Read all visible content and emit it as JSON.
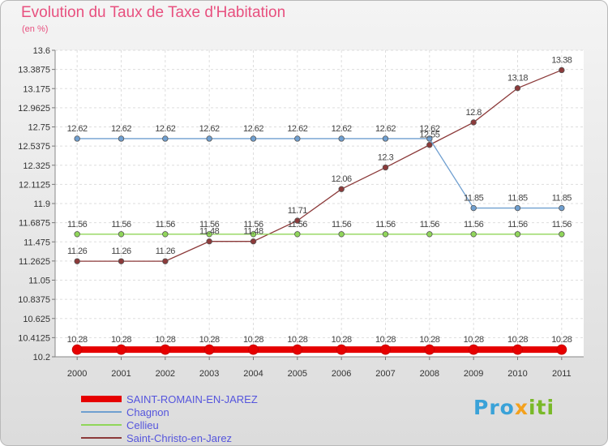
{
  "chart_data": {
    "type": "line",
    "title": "Evolution du Taux de Taxe d'Habitation",
    "subtitle": "(en %)",
    "x": [
      "2000",
      "2001",
      "2002",
      "2003",
      "2004",
      "2005",
      "2006",
      "2007",
      "2008",
      "2009",
      "2010",
      "2011"
    ],
    "yticks": [
      "10.2",
      "10.4125",
      "10.625",
      "10.8375",
      "11.05",
      "11.2625",
      "11.475",
      "11.6875",
      "11.9",
      "12.1125",
      "12.325",
      "12.5375",
      "12.75",
      "12.9625",
      "13.175",
      "13.3875",
      "13.6"
    ],
    "ylim": [
      10.2,
      13.6
    ],
    "grid": true,
    "legend_position": "bottom-left",
    "series": [
      {
        "name": "SAINT-ROMAIN-EN-JAREZ",
        "color": "#e60000",
        "values": [
          10.28,
          10.28,
          10.28,
          10.28,
          10.28,
          10.28,
          10.28,
          10.28,
          10.28,
          10.28,
          10.28,
          10.28
        ],
        "labels": [
          "10.28",
          "10.28",
          "10.28",
          "10.28",
          "10.28",
          "10.28",
          "10.28",
          "10.28",
          "10.28",
          "10.28",
          "10.28",
          "10.28"
        ]
      },
      {
        "name": "Chagnon",
        "color": "#6f9fd0",
        "values": [
          12.62,
          12.62,
          12.62,
          12.62,
          12.62,
          12.62,
          12.62,
          12.62,
          12.62,
          11.85,
          11.85,
          11.85
        ],
        "labels": [
          "12.62",
          "12.62",
          "12.62",
          "12.62",
          "12.62",
          "12.62",
          "12.62",
          "12.62",
          "12.62",
          "11.85",
          "11.85",
          "11.85"
        ]
      },
      {
        "name": "Cellieu",
        "color": "#90d65a",
        "values": [
          11.56,
          11.56,
          11.56,
          11.56,
          11.56,
          11.56,
          11.56,
          11.56,
          11.56,
          11.56,
          11.56,
          11.56
        ],
        "labels": [
          "11.56",
          "11.56",
          "11.56",
          "11.56",
          "11.56",
          "11.56",
          "11.56",
          "11.56",
          "11.56",
          "11.56",
          "11.56",
          "11.56"
        ]
      },
      {
        "name": "Saint-Christo-en-Jarez",
        "color": "#8c3a3a",
        "values": [
          11.26,
          11.26,
          11.26,
          11.48,
          11.48,
          11.71,
          12.06,
          12.3,
          12.55,
          12.8,
          13.18,
          13.38
        ],
        "labels": [
          "11.26",
          "11.26",
          "11.26",
          "11.48",
          "11.48",
          "11.71",
          "12.06",
          "12.3",
          "12.55",
          "12.8",
          "13.18",
          "13.38"
        ]
      }
    ]
  },
  "logo": {
    "part1": "Pro",
    "part2": "x",
    "part3": "iti"
  }
}
